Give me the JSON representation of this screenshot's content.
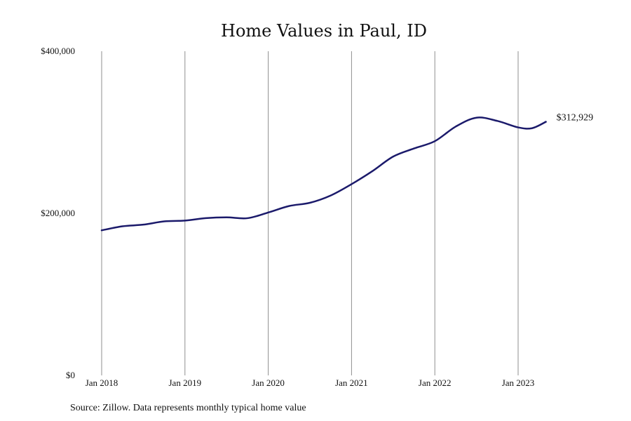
{
  "chart_data": {
    "type": "line",
    "title": "Home Values in Paul, ID",
    "xlabel": "",
    "ylabel": "",
    "source": "Source: Zillow. Data represents monthly typical home value",
    "ylim": [
      0,
      400000
    ],
    "y_ticks": [
      {
        "value": 0,
        "label": "$0"
      },
      {
        "value": 200000,
        "label": "$200,000"
      },
      {
        "value": 400000,
        "label": "$400,000"
      }
    ],
    "x_ticks": [
      {
        "value": "2018-01",
        "label": "Jan 2018"
      },
      {
        "value": "2019-01",
        "label": "Jan 2019"
      },
      {
        "value": "2020-01",
        "label": "Jan 2020"
      },
      {
        "value": "2021-01",
        "label": "Jan 2021"
      },
      {
        "value": "2022-01",
        "label": "Jan 2022"
      },
      {
        "value": "2023-01",
        "label": "Jan 2023"
      }
    ],
    "grid": {
      "vertical": true,
      "horizontal": false
    },
    "series": [
      {
        "color": "#1b1a6b",
        "end_label": "$312,929",
        "x": [
          "2018-01",
          "2018-04",
          "2018-07",
          "2018-10",
          "2019-01",
          "2019-04",
          "2019-07",
          "2019-10",
          "2020-01",
          "2020-04",
          "2020-07",
          "2020-10",
          "2021-01",
          "2021-04",
          "2021-07",
          "2021-10",
          "2022-01",
          "2022-04",
          "2022-07",
          "2022-10",
          "2023-01",
          "2023-03",
          "2023-05"
        ],
        "values": [
          179000,
          184000,
          186000,
          190000,
          191000,
          194000,
          195000,
          194000,
          201000,
          209000,
          213000,
          222000,
          236000,
          252000,
          270000,
          280000,
          289000,
          307000,
          318000,
          314000,
          306000,
          305000,
          312929
        ]
      }
    ]
  }
}
